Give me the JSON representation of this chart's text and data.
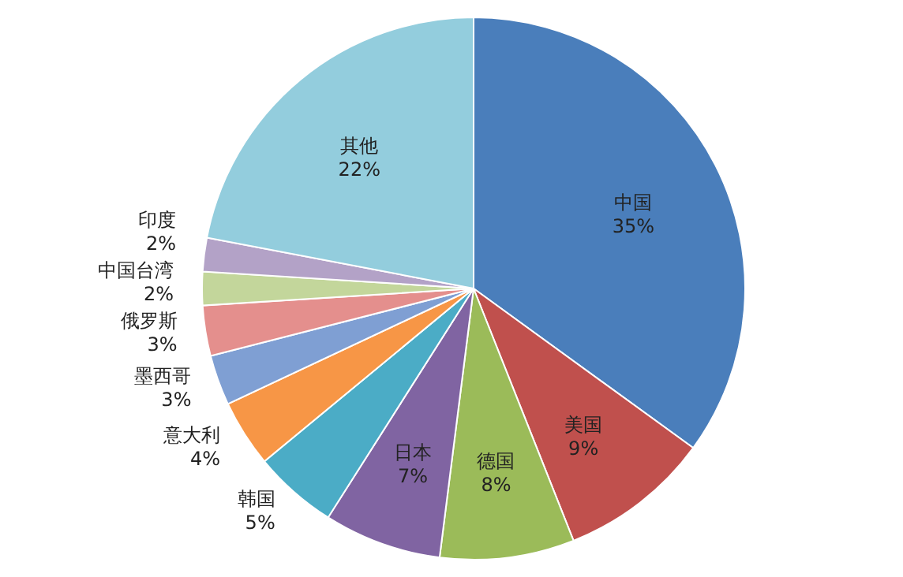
{
  "chart_data": {
    "type": "pie",
    "categories": [
      "中国",
      "美国",
      "德国",
      "日本",
      "韩国",
      "意大利",
      "墨西哥",
      "俄罗斯",
      "中国台湾",
      "印度",
      "其他"
    ],
    "values": [
      35,
      9,
      8,
      7,
      5,
      4,
      3,
      3,
      2,
      2,
      22
    ],
    "value_labels": [
      "35%",
      "9%",
      "8%",
      "7%",
      "5%",
      "4%",
      "3%",
      "3%",
      "2%",
      "2%",
      "22%"
    ],
    "colors": [
      "#4a7ebb",
      "#c0504d",
      "#9bbb59",
      "#8064a2",
      "#4bacc6",
      "#f79646",
      "#7f9fd3",
      "#e48f8d",
      "#c3d69b",
      "#b3a2c7",
      "#93cddd"
    ]
  }
}
